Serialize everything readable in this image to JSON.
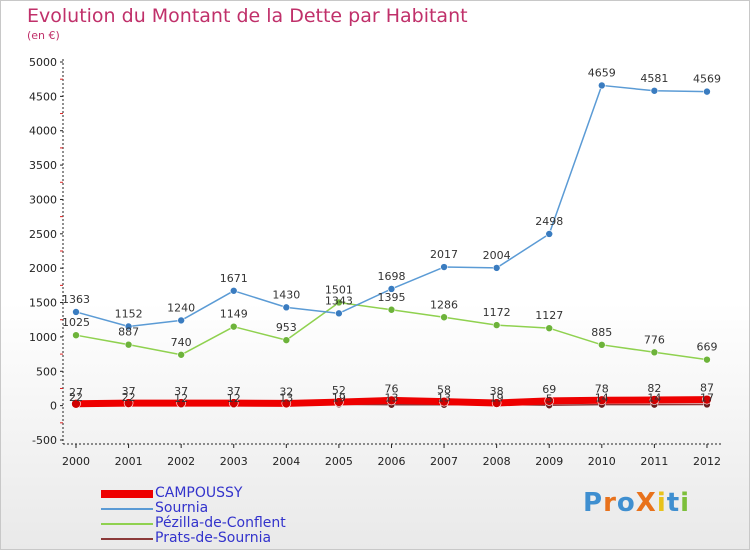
{
  "title": "Evolution du Montant de la Dette par Habitant",
  "subtitle": "(en €)",
  "logo": "ProXiti",
  "chart_data": {
    "type": "line",
    "title": "Evolution du Montant de la Dette par Habitant",
    "ylabel": "(en €)",
    "x": [
      "2000",
      "2001",
      "2002",
      "2003",
      "2004",
      "2005",
      "2006",
      "2007",
      "2008",
      "2009",
      "2010",
      "2011",
      "2012"
    ],
    "ylim": [
      -500,
      5000
    ],
    "yticks": [
      -500,
      0,
      500,
      1000,
      1500,
      2000,
      2500,
      3000,
      3500,
      4000,
      4500,
      5000
    ],
    "grid": false,
    "legend": "bottom-left",
    "series": [
      {
        "name": "CAMPOUSSY",
        "color": "#ee0000",
        "values": [
          27,
          37,
          37,
          37,
          32,
          52,
          76,
          58,
          38,
          69,
          78,
          82,
          87
        ]
      },
      {
        "name": "Sournia",
        "color": "#5b9bd5",
        "values": [
          1363,
          1152,
          1240,
          1671,
          1430,
          1343,
          1698,
          2017,
          2004,
          2498,
          4659,
          4581,
          4569
        ]
      },
      {
        "name": "Pézilla-de-Conflent",
        "color": "#8fd14f",
        "values": [
          1025,
          887,
          740,
          1149,
          953,
          1501,
          1395,
          1286,
          1172,
          1127,
          885,
          776,
          669
        ]
      },
      {
        "name": "Prats-de-Sournia",
        "color": "#8b3a3a",
        "values": [
          22,
          22,
          12,
          12,
          13,
          19,
          13,
          13,
          19,
          5,
          14,
          14,
          17
        ]
      }
    ]
  }
}
